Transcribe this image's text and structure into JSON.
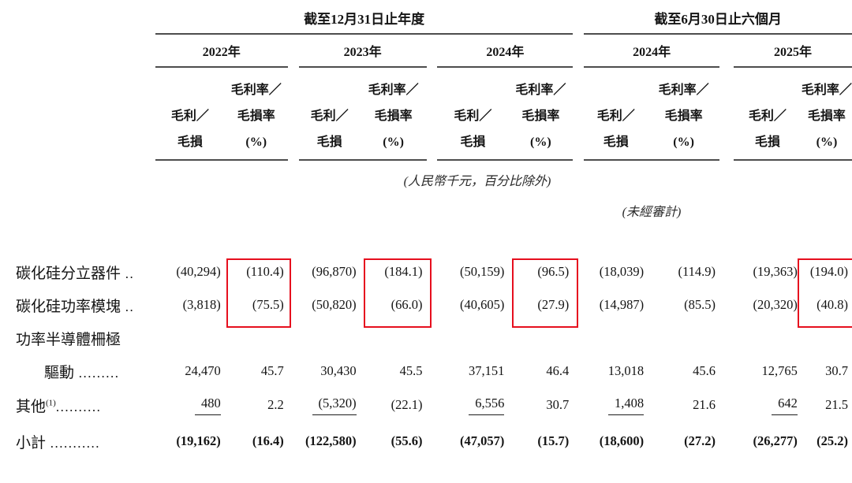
{
  "table": {
    "groups": [
      {
        "title": "截至12月31日止年度",
        "years": [
          "2022年",
          "2023年",
          "2024年"
        ]
      },
      {
        "title": "截至6月30日止六個月",
        "years": [
          "2024年",
          "2025年"
        ]
      }
    ],
    "column_headers": {
      "amount_lines": [
        "毛利／",
        "毛損"
      ],
      "rate_lines": [
        "毛利率／",
        "毛損率",
        "(%)"
      ]
    },
    "notes": {
      "units": "(人民幣千元，百分比除外)",
      "unaudited": "(未經審計)"
    },
    "rows": [
      {
        "label": "碳化硅分立器件",
        "leader": " ..",
        "values": [
          "(40,294)",
          "(110.4)",
          "(96,870)",
          "(184.1)",
          "(50,159)",
          "(96.5)",
          "(18,039)",
          "(114.9)",
          "(19,363)",
          "(194.0)"
        ]
      },
      {
        "label": "碳化硅功率模塊",
        "leader": " ..",
        "values": [
          "(3,818)",
          "(75.5)",
          "(50,820)",
          "(66.0)",
          "(40,605)",
          "(27.9)",
          "(14,987)",
          "(85.5)",
          "(20,320)",
          "(40.8)"
        ]
      },
      {
        "label": "功率半導體柵極",
        "leader": "",
        "values": [
          "",
          "",
          "",
          "",
          "",
          "",
          "",
          "",
          "",
          ""
        ]
      },
      {
        "label": "驅動",
        "leader": " .........",
        "indent": true,
        "values": [
          "24,470",
          "45.7",
          "30,430",
          "45.5",
          "37,151",
          "46.4",
          "13,018",
          "45.6",
          "12,765",
          "30.7"
        ]
      },
      {
        "label": "其他",
        "footnote": "(1)",
        "leader": "..........",
        "sum_line": true,
        "values": [
          "480",
          "2.2",
          "(5,320)",
          "(22.1)",
          "6,556",
          "30.7",
          "1,408",
          "21.6",
          "642",
          "21.5"
        ]
      },
      {
        "label": "小計",
        "leader": " ...........",
        "bold": true,
        "values": [
          "(19,162)",
          "(16.4)",
          "(122,580)",
          "(55.6)",
          "(47,057)",
          "(15.7)",
          "(18,600)",
          "(27.2)",
          "(26,277)",
          "(25.2)"
        ]
      }
    ],
    "highlight": {
      "color": "#e60f1e",
      "boxed_value_columns": [
        1,
        3,
        5,
        9
      ],
      "boxed_rows": [
        0,
        1
      ]
    }
  }
}
